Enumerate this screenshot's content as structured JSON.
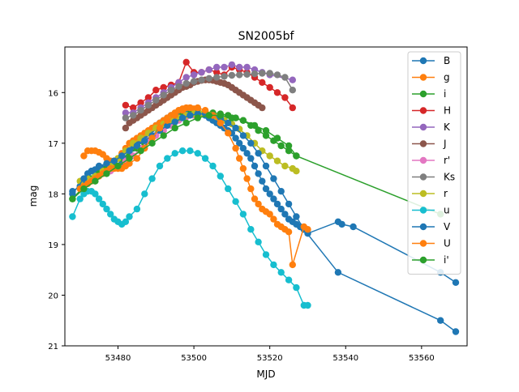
{
  "chart_data": {
    "type": "line",
    "title": "SN2005bf",
    "xlabel": "MJD",
    "ylabel": "mag",
    "xlim": [
      53466,
      53572
    ],
    "ylim": [
      21,
      15.1
    ],
    "y_inverted": true,
    "xticks": [
      53480,
      53500,
      53520,
      53540,
      53560
    ],
    "xtick_labels": [
      "53480",
      "53500",
      "53520",
      "53540",
      "53560"
    ],
    "yticks": [
      16,
      17,
      18,
      19,
      20,
      21
    ],
    "ytick_labels": [
      "16",
      "17",
      "18",
      "19",
      "20",
      "21"
    ],
    "grid": false,
    "legend_position": "top-right",
    "series": [
      {
        "name": "B",
        "color": "#1f77b4",
        "x": [
          53468,
          53470,
          53471,
          53472,
          53473,
          53474,
          53475,
          53476,
          53477,
          53478,
          53479,
          53480,
          53481,
          53482,
          53483,
          53484,
          53485,
          53486,
          53487,
          53488,
          53489,
          53490,
          53491,
          53492,
          53493,
          53494,
          53495,
          53496,
          53497,
          53498,
          53499,
          53500,
          53501,
          53502,
          53503,
          53504,
          53505,
          53506,
          53507,
          53508,
          53509,
          53510,
          53511,
          53512,
          53513,
          53514,
          53515,
          53516,
          53517,
          53518,
          53519,
          53520,
          53521,
          53522,
          53523,
          53524,
          53525,
          53526,
          53527,
          53528,
          53529,
          53530,
          53538,
          53539,
          53542,
          53565,
          53569
        ],
        "y": [
          17.95,
          17.85,
          17.72,
          17.6,
          17.55,
          17.52,
          17.5,
          17.5,
          17.5,
          17.5,
          17.48,
          17.45,
          17.4,
          17.3,
          17.2,
          17.1,
          17.0,
          16.95,
          16.88,
          16.8,
          16.72,
          16.65,
          16.6,
          16.55,
          16.5,
          16.45,
          16.42,
          16.4,
          16.38,
          16.37,
          16.37,
          16.38,
          16.4,
          16.42,
          16.45,
          16.5,
          16.55,
          16.6,
          16.65,
          16.7,
          16.75,
          16.8,
          16.9,
          17.0,
          17.1,
          17.2,
          17.3,
          17.45,
          17.6,
          17.75,
          17.9,
          18.0,
          18.1,
          18.2,
          18.3,
          18.4,
          18.5,
          18.55,
          18.6,
          18.65,
          18.7,
          18.78,
          18.55,
          18.6,
          18.65,
          19.55,
          19.75
        ]
      },
      {
        "name": "g",
        "color": "#ff7f0e",
        "x": [
          53471,
          53472,
          53473,
          53474,
          53475,
          53476,
          53477,
          53478,
          53479,
          53480,
          53481,
          53482,
          53483,
          53484,
          53485,
          53486,
          53487,
          53488,
          53489,
          53490,
          53491,
          53492,
          53493,
          53494,
          53495,
          53496,
          53497,
          53498,
          53499,
          53500,
          53501
        ],
        "y": [
          17.25,
          17.15,
          17.15,
          17.15,
          17.18,
          17.22,
          17.3,
          17.35,
          17.35,
          17.3,
          17.2,
          17.1,
          17.0,
          16.95,
          16.9,
          16.85,
          16.8,
          16.75,
          16.7,
          16.65,
          16.6,
          16.55,
          16.5,
          16.45,
          16.4,
          16.35,
          16.32,
          16.3,
          16.3,
          16.32,
          16.35
        ]
      },
      {
        "name": "i",
        "color": "#2ca02c",
        "x": [
          53468,
          53471,
          53473,
          53475,
          53477,
          53479,
          53481,
          53483,
          53485,
          53487,
          53489,
          53491,
          53493,
          53495,
          53497,
          53499,
          53501,
          53503,
          53505,
          53507,
          53509,
          53511,
          53513,
          53515,
          53517,
          53519,
          53521,
          53523,
          53525,
          53527
        ],
        "y": [
          18.1,
          17.85,
          17.7,
          17.6,
          17.5,
          17.4,
          17.3,
          17.2,
          17.1,
          17.0,
          16.85,
          16.7,
          16.6,
          16.5,
          16.45,
          16.42,
          16.4,
          16.4,
          16.4,
          16.42,
          16.45,
          16.5,
          16.55,
          16.65,
          16.75,
          16.85,
          16.95,
          17.05,
          17.15,
          17.25
        ]
      },
      {
        "name": "H",
        "color": "#d62728",
        "x": [
          53482,
          53484,
          53486,
          53488,
          53490,
          53492,
          53494,
          53496,
          53498,
          53500,
          53502,
          53504,
          53506,
          53508,
          53510,
          53512,
          53514,
          53516,
          53518,
          53520,
          53522,
          53524,
          53526
        ],
        "y": [
          16.25,
          16.3,
          16.2,
          16.1,
          15.95,
          15.9,
          15.85,
          15.8,
          15.4,
          15.6,
          15.6,
          15.55,
          15.6,
          15.65,
          15.5,
          15.55,
          15.6,
          15.7,
          15.8,
          15.9,
          16.0,
          16.1,
          16.3
        ]
      },
      {
        "name": "K",
        "color": "#9467bd",
        "x": [
          53482,
          53484,
          53486,
          53488,
          53490,
          53492,
          53494,
          53496,
          53498,
          53500,
          53502,
          53504,
          53506,
          53508,
          53510,
          53512,
          53514,
          53516,
          53518,
          53520,
          53526
        ],
        "y": [
          16.4,
          16.4,
          16.3,
          16.2,
          16.1,
          16.0,
          15.9,
          15.8,
          15.7,
          15.65,
          15.6,
          15.55,
          15.5,
          15.5,
          15.45,
          15.5,
          15.5,
          15.55,
          15.6,
          15.65,
          15.75
        ]
      },
      {
        "name": "J",
        "color": "#8c564b",
        "x": [
          53482,
          53483,
          53484,
          53485,
          53486,
          53487,
          53488,
          53489,
          53490,
          53491,
          53492,
          53493,
          53494,
          53495,
          53496,
          53497,
          53498,
          53499,
          53500,
          53501,
          53502,
          53503,
          53504,
          53505,
          53506,
          53507,
          53508,
          53509,
          53510,
          53511,
          53512,
          53513,
          53514,
          53515,
          53516,
          53517,
          53518
        ],
        "y": [
          16.7,
          16.6,
          16.55,
          16.5,
          16.45,
          16.4,
          16.35,
          16.3,
          16.25,
          16.2,
          16.15,
          16.1,
          16.05,
          16.0,
          15.95,
          15.9,
          15.88,
          15.85,
          15.8,
          15.78,
          15.76,
          15.75,
          15.75,
          15.76,
          15.78,
          15.8,
          15.82,
          15.85,
          15.9,
          15.95,
          16.0,
          16.05,
          16.1,
          16.15,
          16.2,
          16.25,
          16.3
        ]
      },
      {
        "name": "r'",
        "color": "#e377c2",
        "x": [
          53478,
          53480,
          53482,
          53484,
          53486,
          53488,
          53490,
          53492,
          53494,
          53496,
          53498,
          53500
        ],
        "y": [
          17.55,
          17.45,
          17.35,
          17.25,
          17.1,
          16.95,
          16.85,
          16.75,
          16.65,
          16.55,
          16.48,
          16.45
        ]
      },
      {
        "name": "Ks",
        "color": "#7f7f7f",
        "x": [
          53482,
          53484,
          53486,
          53488,
          53490,
          53492,
          53494,
          53496,
          53498,
          53500,
          53502,
          53504,
          53506,
          53508,
          53510,
          53512,
          53514,
          53516,
          53518,
          53520,
          53522,
          53524,
          53526
        ],
        "y": [
          16.5,
          16.45,
          16.35,
          16.25,
          16.15,
          16.05,
          15.95,
          15.88,
          15.82,
          15.78,
          15.75,
          15.72,
          15.7,
          15.68,
          15.66,
          15.65,
          15.64,
          15.63,
          15.62,
          15.62,
          15.65,
          15.7,
          15.95
        ]
      },
      {
        "name": "r",
        "color": "#bcbd22",
        "x": [
          53470,
          53472,
          53474,
          53476,
          53478,
          53480,
          53482,
          53484,
          53486,
          53488,
          53490,
          53492,
          53494,
          53496,
          53498,
          53500,
          53502,
          53504,
          53506,
          53508,
          53510,
          53512,
          53514,
          53516,
          53518,
          53520,
          53522,
          53524,
          53526,
          53527
        ],
        "y": [
          17.75,
          17.7,
          17.65,
          17.55,
          17.45,
          17.3,
          17.15,
          17.0,
          16.9,
          16.8,
          16.7,
          16.62,
          16.55,
          16.5,
          16.45,
          16.42,
          16.42,
          16.44,
          16.48,
          16.55,
          16.62,
          16.72,
          16.85,
          17.0,
          17.15,
          17.25,
          17.35,
          17.45,
          17.5,
          17.55
        ]
      },
      {
        "name": "u",
        "color": "#17becf",
        "x": [
          53468,
          53470,
          53471,
          53472,
          53473,
          53474,
          53475,
          53476,
          53477,
          53478,
          53479,
          53480,
          53481,
          53482,
          53483,
          53485,
          53487,
          53489,
          53491,
          53493,
          53495,
          53497,
          53499,
          53501,
          53503,
          53505,
          53507,
          53509,
          53511,
          53513,
          53515,
          53517,
          53519,
          53521,
          53523,
          53525,
          53527,
          53529,
          53530
        ],
        "y": [
          18.45,
          18.1,
          18.0,
          17.95,
          17.95,
          18.0,
          18.1,
          18.2,
          18.3,
          18.4,
          18.5,
          18.55,
          18.6,
          18.55,
          18.45,
          18.3,
          18.0,
          17.7,
          17.45,
          17.3,
          17.2,
          17.15,
          17.15,
          17.2,
          17.3,
          17.45,
          17.65,
          17.9,
          18.15,
          18.4,
          18.7,
          18.95,
          19.2,
          19.4,
          19.55,
          19.7,
          19.85,
          20.2,
          20.2
        ]
      },
      {
        "name": "V",
        "color": "#1f77b4",
        "x": [
          53468,
          53471,
          53473,
          53475,
          53477,
          53479,
          53481,
          53483,
          53485,
          53487,
          53489,
          53491,
          53493,
          53495,
          53497,
          53499,
          53501,
          53503,
          53505,
          53507,
          53509,
          53511,
          53513,
          53515,
          53517,
          53519,
          53521,
          53523,
          53525,
          53527,
          53529,
          53538,
          53565,
          53569
        ],
        "y": [
          18.0,
          17.7,
          17.55,
          17.45,
          17.4,
          17.35,
          17.25,
          17.15,
          17.05,
          16.95,
          16.85,
          16.75,
          16.65,
          16.58,
          16.5,
          16.45,
          16.42,
          16.42,
          16.45,
          16.5,
          16.6,
          16.7,
          16.85,
          17.0,
          17.2,
          17.45,
          17.7,
          17.95,
          18.2,
          18.45,
          18.7,
          19.55,
          20.5,
          20.72
        ]
      },
      {
        "name": "U",
        "color": "#ff7f0e",
        "x": [
          53470,
          53471,
          53472,
          53473,
          53474,
          53475,
          53476,
          53477,
          53478,
          53479,
          53480,
          53481,
          53482,
          53483,
          53485,
          53487,
          53489,
          53491,
          53493,
          53495,
          53497,
          53499,
          53501,
          53503,
          53505,
          53507,
          53509,
          53511,
          53512,
          53513,
          53514,
          53515,
          53516,
          53517,
          53518,
          53519,
          53520,
          53521,
          53522,
          53523,
          53524,
          53525,
          53526,
          53529,
          53530
        ],
        "y": [
          17.9,
          17.85,
          17.8,
          17.75,
          17.7,
          17.65,
          17.6,
          17.55,
          17.5,
          17.5,
          17.5,
          17.5,
          17.45,
          17.4,
          17.3,
          17.1,
          16.9,
          16.7,
          16.55,
          16.45,
          16.35,
          16.3,
          16.3,
          16.35,
          16.45,
          16.6,
          16.8,
          17.1,
          17.3,
          17.5,
          17.7,
          17.9,
          18.1,
          18.2,
          18.3,
          18.35,
          18.4,
          18.5,
          18.6,
          18.65,
          18.7,
          18.75,
          19.4,
          18.65,
          18.7
        ]
      },
      {
        "name": "i'",
        "color": "#2ca02c",
        "x": [
          53468,
          53471,
          53474,
          53477,
          53480,
          53483,
          53486,
          53489,
          53492,
          53495,
          53498,
          53501,
          53504,
          53507,
          53510,
          53513,
          53516,
          53519,
          53522,
          53525,
          53527,
          53565
        ],
        "y": [
          18.1,
          17.9,
          17.75,
          17.6,
          17.45,
          17.3,
          17.15,
          17.0,
          16.85,
          16.7,
          16.6,
          16.5,
          16.45,
          16.45,
          16.5,
          16.55,
          16.65,
          16.75,
          16.9,
          17.05,
          17.25,
          18.4
        ]
      }
    ]
  }
}
